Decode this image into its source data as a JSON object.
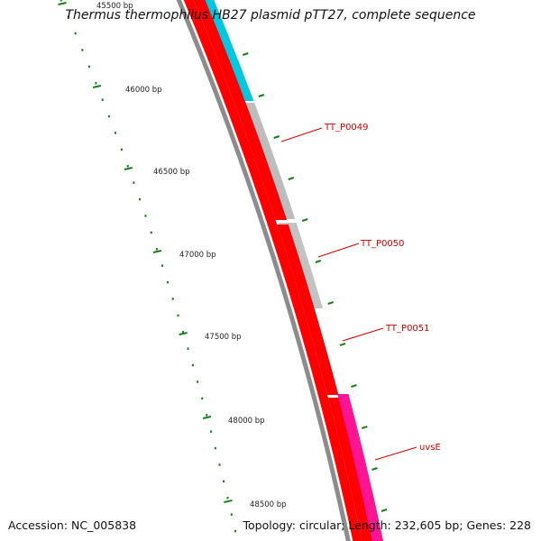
{
  "title": "Thermus thermophilus HB27 plasmid pTT27, complete sequence",
  "footer": {
    "accession": "Accession: NC_005838",
    "summary": "Topology: circular; Length: 232,605 bp; Genes: 228"
  },
  "ruler": {
    "labels": [
      "45500 bp",
      "46000 bp",
      "46500 bp",
      "47000 bp",
      "47500 bp",
      "48000 bp",
      "48500 bp"
    ]
  },
  "genes": {
    "labels": [
      "TT_P0049",
      "TT_P0050",
      "TT_P0051",
      "uvsE"
    ]
  },
  "colors": {
    "backbone": "#8c8c8c",
    "cds": "#ff0000",
    "gene": "#bdbdbd",
    "uvsE": "#ff1493",
    "cyan": "#00c8e0",
    "olive": "#6b7f10",
    "tick": "#1a7f1a",
    "label": "#d00000"
  }
}
